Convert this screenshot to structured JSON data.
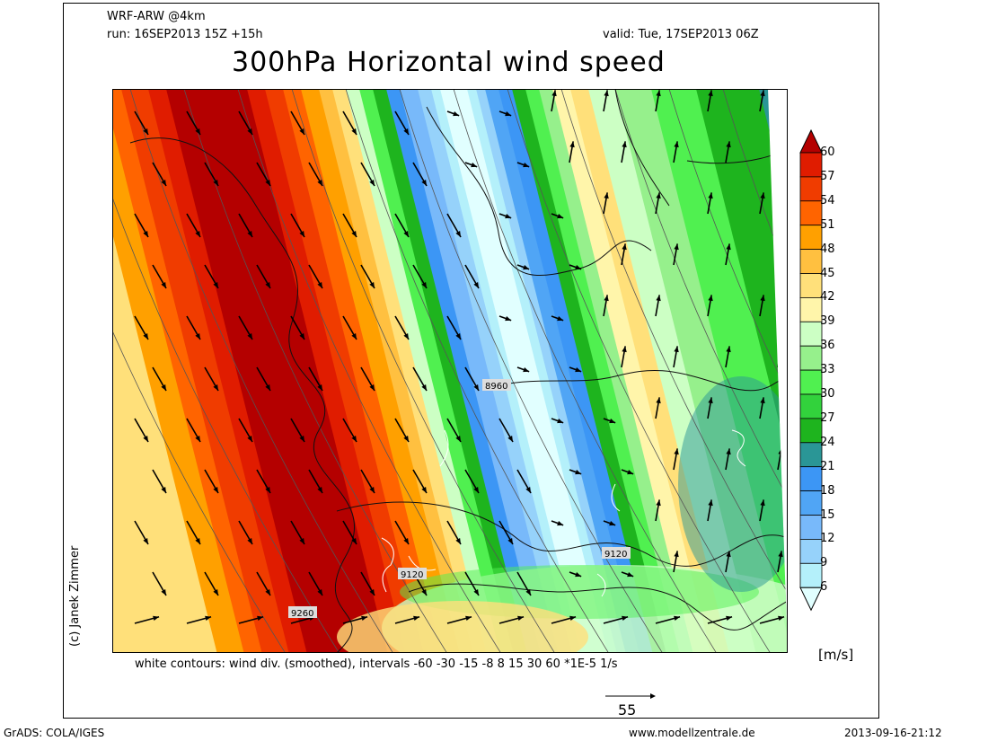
{
  "header": {
    "model": "WRF-ARW @4km",
    "run": "run: 16SEP2013 15Z +15h",
    "valid": "valid: Tue, 17SEP2013 06Z",
    "title": "300hPa Horizontal wind speed"
  },
  "map": {
    "contour_labels": [
      "8960",
      "9120",
      "9120",
      "9260"
    ],
    "credit": "(c) Janek Zimmer"
  },
  "colorbar": {
    "unit": "[m/s]",
    "ticks": [
      "60",
      "57",
      "54",
      "51",
      "48",
      "45",
      "42",
      "39",
      "36",
      "33",
      "30",
      "27",
      "24",
      "21",
      "18",
      "15",
      "12",
      "9",
      "6"
    ],
    "colors": [
      "#b40000",
      "#e01c00",
      "#f03c00",
      "#ff6400",
      "#ffa000",
      "#ffc040",
      "#ffe07a",
      "#fff5aa",
      "#ccffc4",
      "#96f08c",
      "#50f050",
      "#32d23c",
      "#1eb41e",
      "#2a9696",
      "#3c96f5",
      "#50a5f5",
      "#78b9fa",
      "#96d2fa",
      "#b4f0fa",
      "#e1ffff"
    ]
  },
  "footnote": "white contours: wind div. (smoothed), intervals -60 -30 -15 -8 8 15 30 60 *1E-5 1/s",
  "reference_vector": "55",
  "footer": {
    "left": "GrADS: COLA/IGES",
    "center": "www.modellzentrale.de",
    "right": "2013-09-16-21:12"
  }
}
